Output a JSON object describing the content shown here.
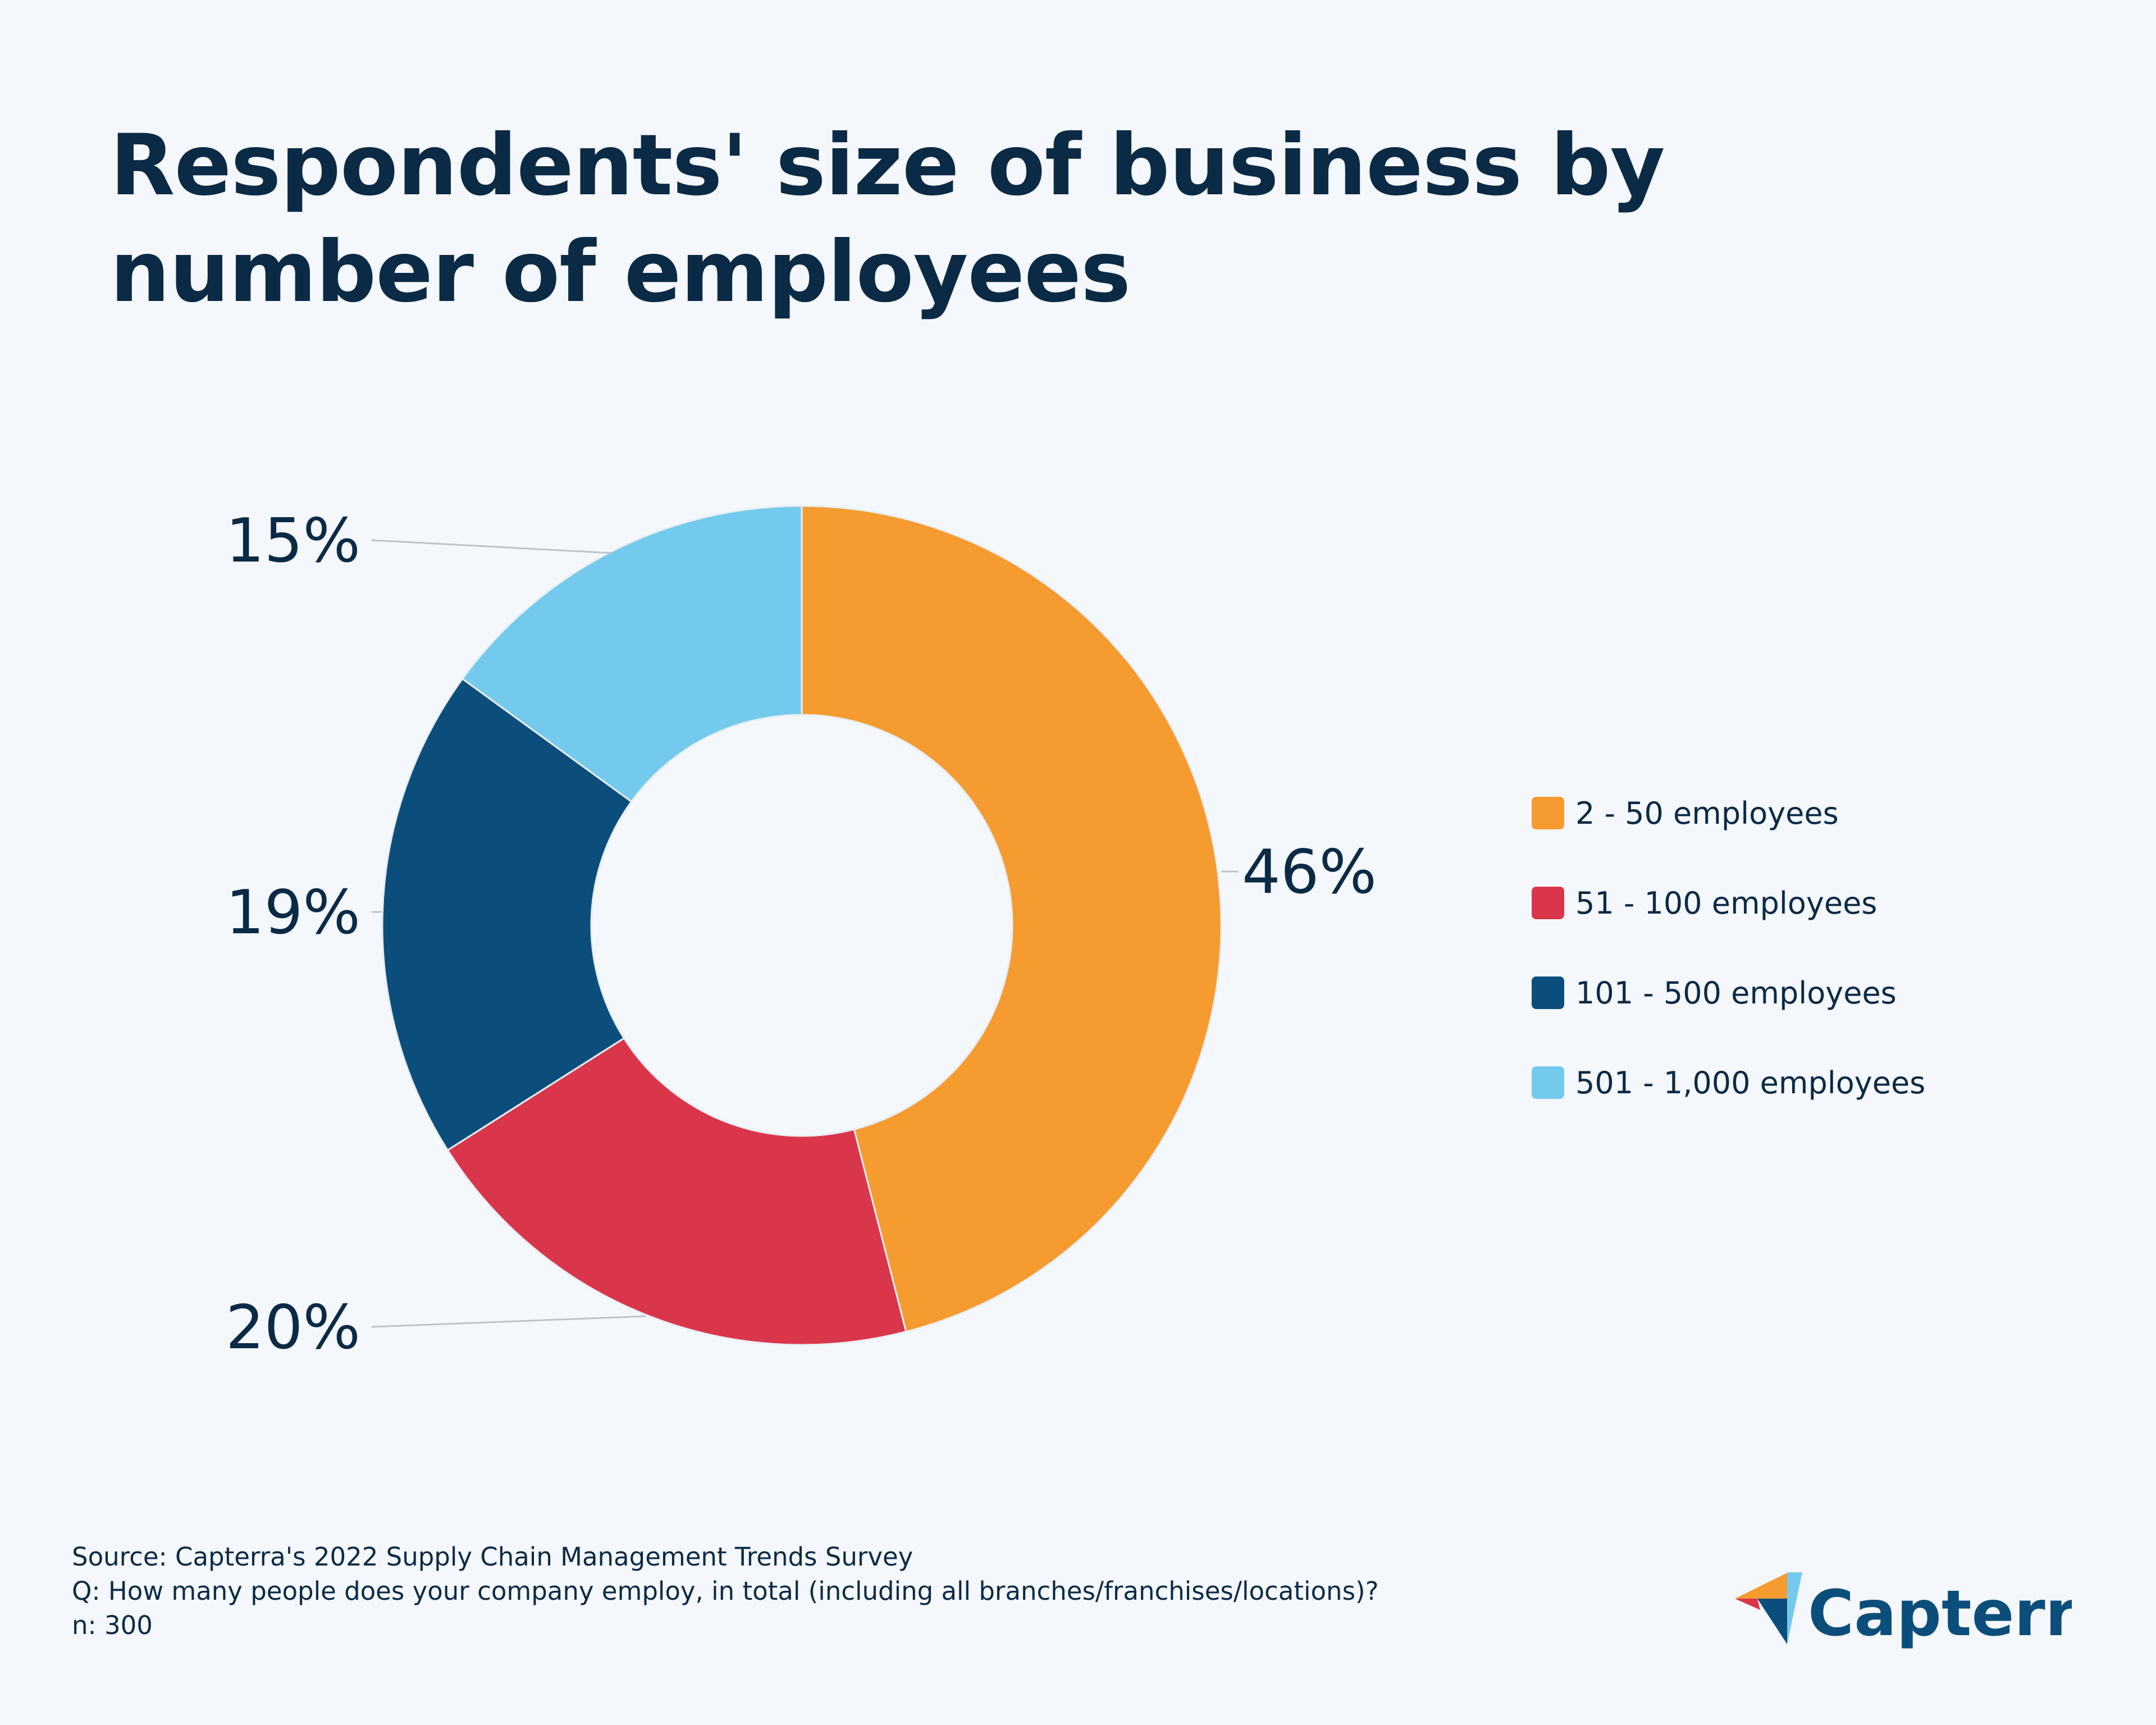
{
  "title": "Respondents' size of business by number of employees",
  "chart_data": {
    "type": "pie",
    "style": "donut",
    "title": "Respondents' size of business by number of employees",
    "categories": [
      "2 - 50 employees",
      "51 - 100 employees",
      "101 - 500 employees",
      "501 - 1,000 employees"
    ],
    "values": [
      46,
      20,
      19,
      15
    ],
    "labels": [
      "46%",
      "20%",
      "19%",
      "15%"
    ],
    "colors": [
      "#f59b30",
      "#da364b",
      "#0c4e7b",
      "#74caed"
    ],
    "legend_placement": "right"
  },
  "footer": {
    "source": "Source: Capterra's 2022 Supply Chain Management Trends Survey",
    "question": "Q: How many people does your company employ, in total (including all branches/franchises/locations)?",
    "n": "n: 300"
  },
  "logo": {
    "text": "Capterra",
    "colors": [
      "#f59b30",
      "#da364b",
      "#0c4e7b",
      "#74caed"
    ]
  }
}
